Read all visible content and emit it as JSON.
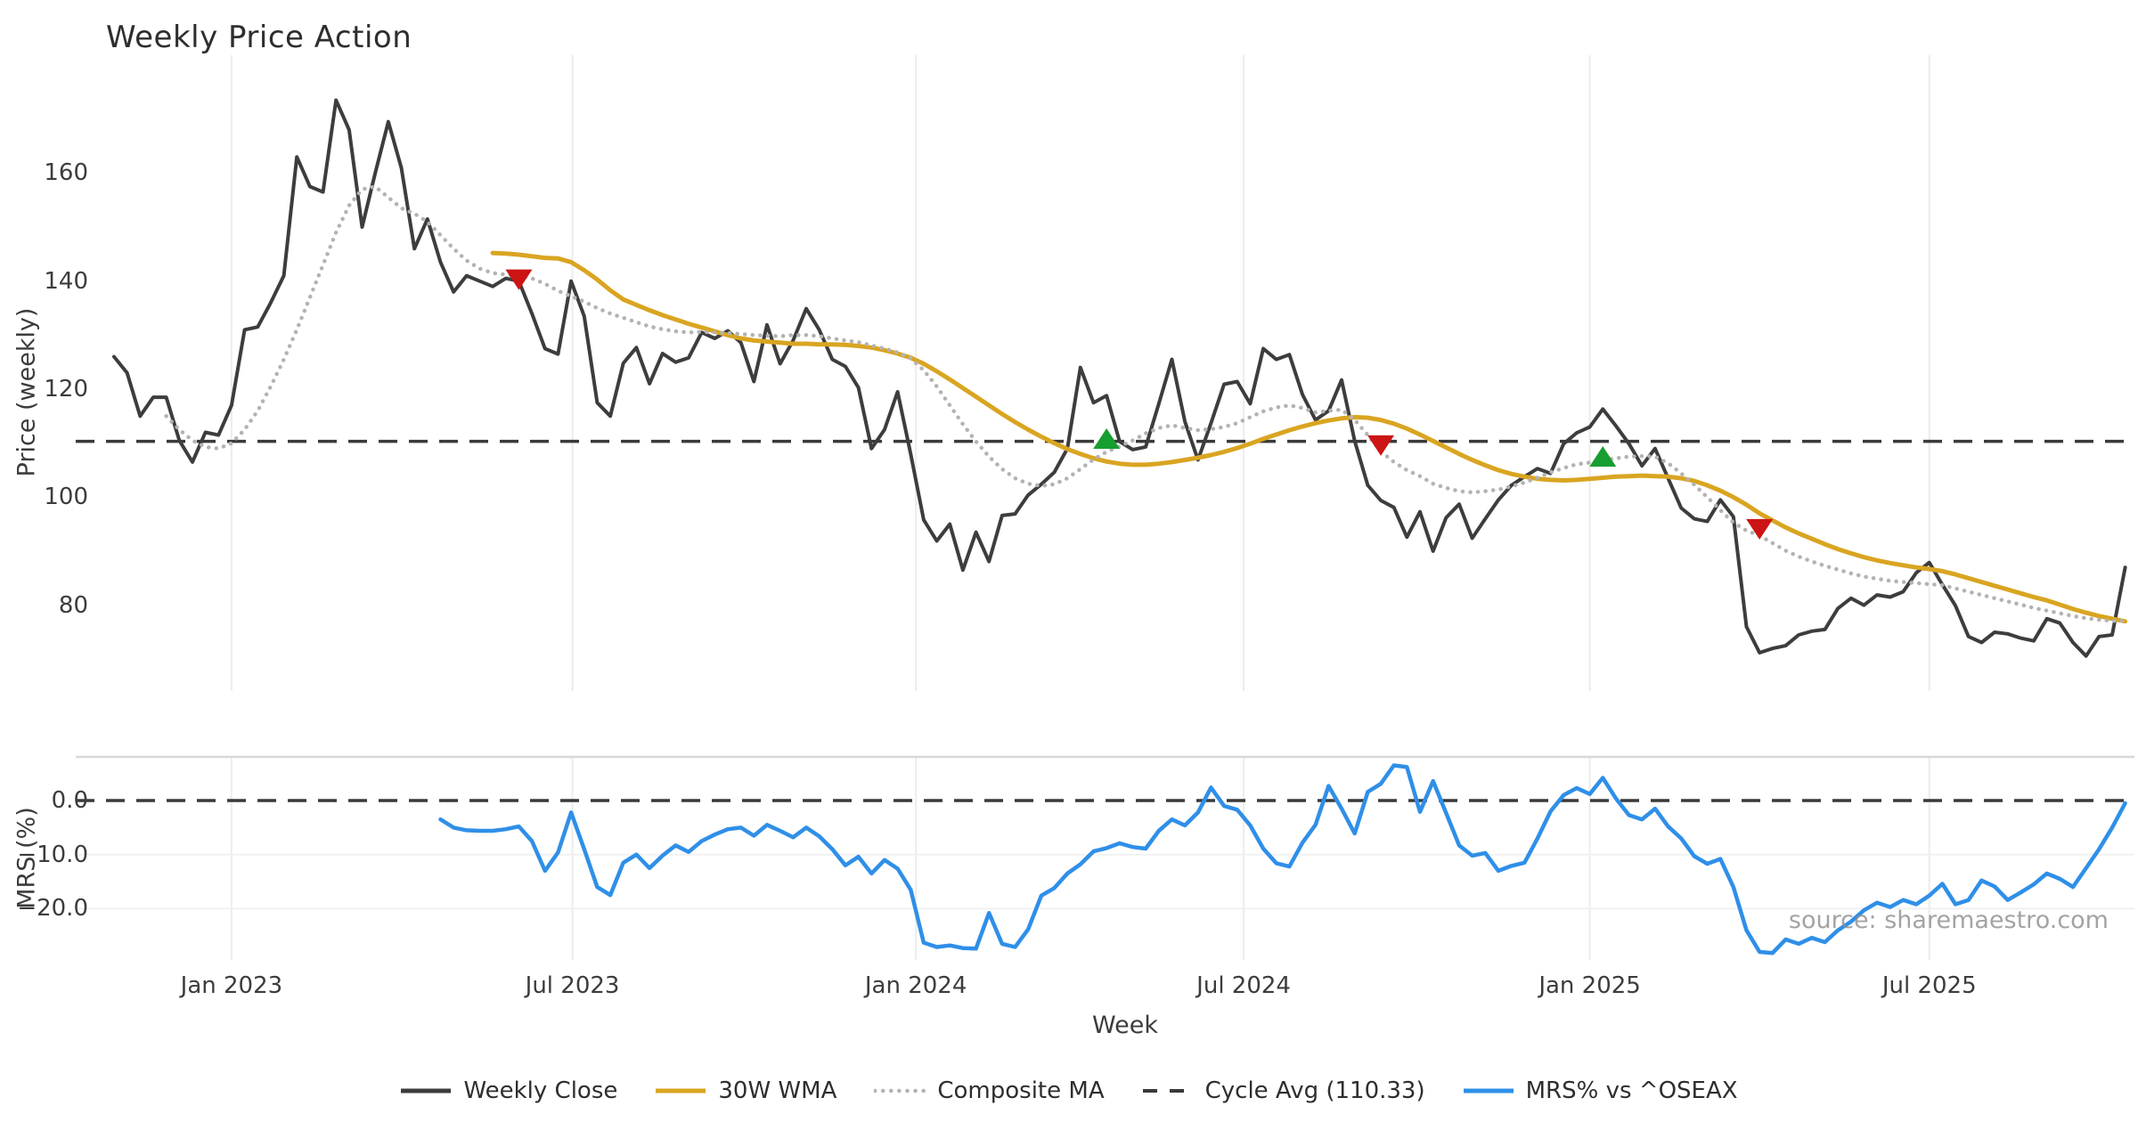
{
  "title": "Weekly Price Action",
  "watermark": "source: sharemaestro.com",
  "colors": {
    "weekly_close": "#3d3d3d",
    "wma_30w": "#d9a521",
    "composite_ma": "#b3b3b3",
    "cycle_avg": "#3a3a3a",
    "mrs": "#2f8fe8",
    "sell_marker": "#cc1414",
    "buy_marker": "#179e30",
    "gridline": "#ececec",
    "mrs_spine": "#d8d8d8"
  },
  "legend": {
    "items": [
      {
        "label": "Weekly Close",
        "color": "#3d3d3d",
        "style": "solid"
      },
      {
        "label": "30W WMA",
        "color": "#d9a521",
        "style": "solid"
      },
      {
        "label": "Composite MA",
        "color": "#b3b3b3",
        "style": "dotted"
      },
      {
        "label": "Cycle Avg (110.33)",
        "color": "#3a3a3a",
        "style": "dashed"
      },
      {
        "label": "MRS% vs ^OSEAX",
        "color": "#2f8fe8",
        "style": "solid"
      }
    ]
  },
  "chart_data": [
    {
      "type": "line",
      "panel": "price",
      "title": "Weekly Price Action",
      "xlabel": "Week",
      "ylabel": "Price (weekly)",
      "ylim": [
        64,
        181
      ],
      "x_unit": "week index, week 0 = first plotted week (late Oct 2022)",
      "grid": "vertical only, light gray",
      "yticks": [
        {
          "label": "160",
          "value": 160
        },
        {
          "label": "140",
          "value": 140
        },
        {
          "label": "120",
          "value": 120
        },
        {
          "label": "100",
          "value": 100
        },
        {
          "label": "80",
          "value": 80
        }
      ],
      "xticks": [
        {
          "label": "Jan 2023",
          "week": 9.0
        },
        {
          "label": "Jul 2023",
          "week": 35.1
        },
        {
          "label": "Jan 2024",
          "week": 61.4
        },
        {
          "label": "Jul 2024",
          "week": 86.5
        },
        {
          "label": "Jan 2025",
          "week": 113.0
        },
        {
          "label": "Jul 2025",
          "week": 139.0
        }
      ],
      "cycle_avg_value": 110.33,
      "series": [
        {
          "name": "Weekly Close",
          "style": "solid",
          "color": "#3d3d3d",
          "start_week": 0,
          "values": [
            126,
            123,
            115,
            118.5,
            118.5,
            110.5,
            106.5,
            112,
            111.5,
            117,
            131,
            131.5,
            136,
            141,
            163,
            157.5,
            156.5,
            173.5,
            168,
            150,
            160,
            169.5,
            161,
            146,
            151.5,
            143.5,
            138,
            141,
            140,
            139,
            140.5,
            140,
            134,
            127.5,
            126.5,
            140,
            133.5,
            117.5,
            115,
            124.8,
            127.7,
            121,
            126.6,
            125,
            125.8,
            130.5,
            129.4,
            130.8,
            128.6,
            121.4,
            131.9,
            124.7,
            129,
            134.9,
            131,
            125.5,
            124.2,
            120.3,
            109,
            112.5,
            119.5,
            108,
            95.8,
            91.9,
            95,
            86.5,
            93.5,
            88.1,
            96.6,
            96.9,
            100.4,
            102.4,
            104.6,
            109,
            124,
            117.5,
            118.8,
            110.3,
            108.8,
            109.3,
            117.3,
            125.5,
            114,
            106.9,
            113.7,
            120.9,
            121.4,
            117.3,
            127.5,
            125.5,
            126.4,
            119,
            114.3,
            116,
            121.7,
            110.4,
            102.2,
            99.4,
            98.1,
            92.6,
            97.3,
            90,
            96.2,
            98.7,
            92.4,
            96,
            99.5,
            102.2,
            103.8,
            105.3,
            104.4,
            109.9,
            111.9,
            113,
            116.3,
            113.2,
            109.9,
            105.8,
            109,
            103.5,
            98,
            96,
            95.5,
            99.5,
            96.4,
            76,
            71.2,
            72,
            72.5,
            74.5,
            75.2,
            75.5,
            79.4,
            81.3,
            80,
            81.9,
            81.5,
            82.5,
            86,
            87.9,
            83.8,
            79.9,
            74.2,
            73.1,
            75,
            74.7,
            73.9,
            73.4,
            77.5,
            76.7,
            73.1,
            70.6,
            74.2,
            74.5,
            87
          ]
        },
        {
          "name": "30W WMA",
          "style": "solid",
          "color": "#d9a521",
          "start_week": 29,
          "values": [
            145.2,
            145.1,
            144.9,
            144.6,
            144.3,
            144.2,
            143.5,
            142,
            140.3,
            138.3,
            136.6,
            135.6,
            134.6,
            133.7,
            132.9,
            132.1,
            131.4,
            130.7,
            130,
            129.4,
            129,
            128.8,
            128.6,
            128.4,
            128.4,
            128.3,
            128.3,
            128.2,
            128,
            127.7,
            127.2,
            126.6,
            125.8,
            124.7,
            123.3,
            121.8,
            120.2,
            118.6,
            117,
            115.4,
            113.9,
            112.5,
            111.2,
            110,
            108.9,
            108,
            107.2,
            106.6,
            106.2,
            106,
            106,
            106.2,
            106.5,
            106.9,
            107.3,
            107.8,
            108.4,
            109.1,
            109.9,
            110.8,
            111.6,
            112.4,
            113.1,
            113.7,
            114.2,
            114.6,
            114.8,
            114.7,
            114.3,
            113.6,
            112.7,
            111.6,
            110.4,
            109.2,
            108,
            106.9,
            105.9,
            105,
            104.3,
            103.8,
            103.4,
            103.2,
            103.1,
            103.2,
            103.4,
            103.6,
            103.8,
            103.9,
            104,
            103.9,
            103.8,
            103.5,
            103,
            102.2,
            101.2,
            100,
            98.6,
            97,
            95.7,
            94.4,
            93.3,
            92.3,
            91.3,
            90.4,
            89.6,
            88.9,
            88.3,
            87.8,
            87.4,
            87,
            86.7,
            86.3,
            85.7,
            85,
            84.3,
            83.6,
            82.9,
            82.2,
            81.5,
            80.9,
            80.1,
            79.3,
            78.6,
            78,
            77.5,
            77
          ]
        },
        {
          "name": "Composite MA",
          "style": "dotted",
          "color": "#b3b3b3",
          "start_week": 4,
          "values": [
            115,
            112.5,
            110.5,
            109.3,
            109,
            110,
            112.5,
            116,
            120.5,
            125.5,
            131,
            137,
            143,
            149,
            154,
            157,
            157.5,
            155.5,
            153.5,
            152.5,
            151,
            148.5,
            146,
            143.8,
            142.3,
            141.5,
            141.2,
            141,
            140.5,
            139.5,
            138.2,
            137.2,
            136.2,
            135,
            134,
            133.2,
            132.4,
            131.6,
            131.1,
            130.7,
            130.5,
            130.6,
            130.5,
            130.4,
            130.2,
            130,
            129.9,
            129.8,
            130,
            130,
            129.8,
            129.4,
            129,
            128.7,
            128.1,
            127.5,
            126.8,
            125.7,
            123.5,
            120.5,
            117,
            113.5,
            110.3,
            107.5,
            105.2,
            103.5,
            102.5,
            102.1,
            102.4,
            103.5,
            105.2,
            107,
            108.4,
            109.4,
            110.5,
            111.8,
            112.8,
            113.3,
            112.8,
            112.4,
            112.6,
            113,
            113.7,
            114.8,
            115.9,
            116.6,
            117,
            116.5,
            115.7,
            116,
            116.2,
            114.3,
            111.5,
            108.5,
            106.5,
            105,
            103.9,
            102.5,
            101.7,
            101.1,
            100.9,
            101.1,
            101.4,
            102,
            102.7,
            103.6,
            104.6,
            105.4,
            106.1,
            106.4,
            106.8,
            107.2,
            107.5,
            107.6,
            107.5,
            106.3,
            104.4,
            102.3,
            100,
            97.6,
            95.3,
            93.8,
            92.9,
            91.5,
            90.1,
            89,
            88.1,
            87.3,
            86.6,
            85.9,
            85.3,
            84.9,
            84.5,
            84.3,
            84.1,
            83.9,
            83.7,
            83.1,
            82.5,
            81.9,
            81.3,
            80.7,
            80.1,
            79.5,
            79,
            78.5,
            78,
            77.6,
            77.3,
            77.1,
            77.1
          ]
        },
        {
          "name": "Cycle Avg (110.33)",
          "style": "dashed",
          "color": "#3a3a3a",
          "constant": 110.33
        }
      ],
      "markers": [
        {
          "week": 31,
          "price": 140.5,
          "type": "sell"
        },
        {
          "week": 76,
          "price": 110.6,
          "type": "buy"
        },
        {
          "week": 97,
          "price": 109.8,
          "type": "sell"
        },
        {
          "week": 114,
          "price": 107.3,
          "type": "buy"
        },
        {
          "week": 126,
          "price": 94.3,
          "type": "sell"
        }
      ]
    },
    {
      "type": "line",
      "panel": "mrs",
      "ylabel": "MRS (%)",
      "ylim": [
        -29.5,
        8.1
      ],
      "zero_line": 0,
      "yticks": [
        {
          "label": "0.0",
          "value": 0
        },
        {
          "label": "−10.0",
          "value": -10
        },
        {
          "label": "−20.0",
          "value": -20
        }
      ],
      "series": [
        {
          "name": "MRS% vs ^OSEAX",
          "style": "solid",
          "color": "#2f8fe8",
          "start_week": 25,
          "values": [
            -3.5,
            -5,
            -5.5,
            -5.6,
            -5.6,
            -5.3,
            -4.8,
            -7.5,
            -13,
            -9.6,
            -2.2,
            -9,
            -16,
            -17.5,
            -11.5,
            -10,
            -12.5,
            -10.2,
            -8.3,
            -9.5,
            -7.5,
            -6.3,
            -5.3,
            -5,
            -6.5,
            -4.5,
            -5.6,
            -6.8,
            -5,
            -6.6,
            -9,
            -12,
            -10.4,
            -13.5,
            -11,
            -12.6,
            -16.5,
            -26.3,
            -27.1,
            -26.8,
            -27.3,
            -27.4,
            -20.8,
            -26.5,
            -27.1,
            -23.8,
            -17.6,
            -16.2,
            -13.5,
            -11.8,
            -9.4,
            -8.8,
            -7.9,
            -8.6,
            -8.9,
            -5.6,
            -3.5,
            -4.6,
            -2.2,
            2.4,
            -1,
            -1.7,
            -4.6,
            -8.9,
            -11.6,
            -12.2,
            -7.8,
            -4.5,
            2.7,
            -1.5,
            -6.1,
            1.6,
            3.1,
            6.5,
            6.2,
            -2.1,
            3.6,
            -2.3,
            -8.3,
            -10.2,
            -9.7,
            -13,
            -12.1,
            -11.5,
            -7,
            -2,
            1,
            2.3,
            1.2,
            4.2,
            0.4,
            -2.7,
            -3.5,
            -1.5,
            -4.8,
            -7,
            -10.3,
            -11.7,
            -10.8,
            -16,
            -24,
            -28,
            -28.2,
            -25.7,
            -26.5,
            -25.4,
            -26.2,
            -24,
            -22.4,
            -20.3,
            -18.9,
            -19.7,
            -18.4,
            -19.2,
            -17.6,
            -15.4,
            -19.2,
            -18.4,
            -14.8,
            -15.9,
            -18.4,
            -17,
            -15.5,
            -13.5,
            -14.5,
            -16,
            -12.5,
            -9,
            -5,
            -0.5
          ]
        }
      ]
    }
  ]
}
